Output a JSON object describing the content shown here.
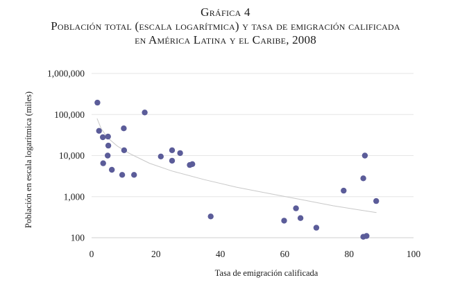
{
  "chart_data": {
    "type": "scatter",
    "figure_label": "Gráfica 4",
    "title_line1": "Población total (escala logarítmica) y tasa de emigración calificada",
    "title_line2": "en América Latina y el Caribe, 2008",
    "xlabel": "Tasa de emigración calificada",
    "ylabel": "Población en escala logarítmica (miles)",
    "x_scale": "linear",
    "y_scale": "log",
    "xlim": [
      0,
      100
    ],
    "ylim": [
      100,
      1000000
    ],
    "x_ticks": [
      0,
      20,
      40,
      60,
      80,
      100
    ],
    "y_ticks": [
      100,
      1000,
      10000,
      100000,
      1000000
    ],
    "y_tick_labels": [
      "100",
      "1,000",
      "10,000",
      "100,000",
      "1,000,000"
    ],
    "grid": "horizontal",
    "point_color": "#5b5c99",
    "trend_color": "#c8c8c8",
    "points": [
      {
        "x": 1.8,
        "y": 195000
      },
      {
        "x": 2.3,
        "y": 40000
      },
      {
        "x": 3.5,
        "y": 28000
      },
      {
        "x": 5.1,
        "y": 29000
      },
      {
        "x": 5.2,
        "y": 17500
      },
      {
        "x": 5.0,
        "y": 10000
      },
      {
        "x": 3.6,
        "y": 6500
      },
      {
        "x": 6.3,
        "y": 4500
      },
      {
        "x": 9.5,
        "y": 3400
      },
      {
        "x": 10.0,
        "y": 46000
      },
      {
        "x": 10.1,
        "y": 13500
      },
      {
        "x": 13.2,
        "y": 3400
      },
      {
        "x": 16.5,
        "y": 112000
      },
      {
        "x": 21.5,
        "y": 9500
      },
      {
        "x": 25.0,
        "y": 13500
      },
      {
        "x": 25.0,
        "y": 7500
      },
      {
        "x": 27.5,
        "y": 11500
      },
      {
        "x": 30.5,
        "y": 5900
      },
      {
        "x": 31.3,
        "y": 6200
      },
      {
        "x": 37.0,
        "y": 330
      },
      {
        "x": 59.8,
        "y": 260
      },
      {
        "x": 63.5,
        "y": 520
      },
      {
        "x": 64.9,
        "y": 300
      },
      {
        "x": 69.8,
        "y": 175
      },
      {
        "x": 78.3,
        "y": 1400
      },
      {
        "x": 84.4,
        "y": 2800
      },
      {
        "x": 84.9,
        "y": 10000
      },
      {
        "x": 84.4,
        "y": 105
      },
      {
        "x": 85.4,
        "y": 110
      },
      {
        "x": 88.4,
        "y": 780
      }
    ],
    "trendline": {
      "type": "power",
      "points": [
        {
          "x": 1.7,
          "y": 80000
        },
        {
          "x": 3,
          "y": 45000
        },
        {
          "x": 5,
          "y": 27000
        },
        {
          "x": 8,
          "y": 17000
        },
        {
          "x": 12,
          "y": 11000
        },
        {
          "x": 18,
          "y": 6500
        },
        {
          "x": 25,
          "y": 4200
        },
        {
          "x": 35,
          "y": 2600
        },
        {
          "x": 45,
          "y": 1700
        },
        {
          "x": 55,
          "y": 1200
        },
        {
          "x": 65,
          "y": 850
        },
        {
          "x": 75,
          "y": 600
        },
        {
          "x": 85,
          "y": 450
        },
        {
          "x": 88.5,
          "y": 410
        }
      ]
    }
  }
}
